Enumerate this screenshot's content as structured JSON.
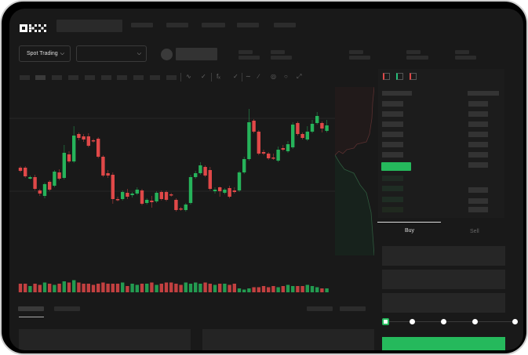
{
  "header": {
    "logo": "OKX"
  },
  "toolbar": {
    "market_select": "Spot Trading",
    "pair_select": ""
  },
  "trade_panel": {
    "tabs": [
      "Buy",
      "Sell"
    ],
    "active_tab": "Buy",
    "slider_percent": 0
  },
  "colors": {
    "up": "#26b35a",
    "down": "#e04848",
    "accent": "#25b95c",
    "background": "#191919"
  },
  "icons": [
    "chevron-down-icon",
    "line-tool-icon",
    "indicator-icon",
    "draw-icon",
    "ruler-icon",
    "camera-icon",
    "target-icon",
    "fullscreen-icon",
    "orderbook-both-icon",
    "orderbook-buy-icon",
    "orderbook-sell-icon"
  ],
  "chart_data": {
    "type": "candlestick",
    "candles": [
      [
        97,
        93,
        99,
        91
      ],
      [
        97,
        86,
        99,
        84
      ],
      [
        83,
        85,
        87,
        82
      ],
      [
        85,
        70,
        88,
        68
      ],
      [
        68,
        64,
        70,
        61
      ],
      [
        61,
        76,
        78,
        58
      ],
      [
        79,
        69,
        81,
        67
      ],
      [
        74,
        92,
        94,
        72
      ],
      [
        91,
        83,
        95,
        81
      ],
      [
        84,
        116,
        126,
        82
      ],
      [
        114,
        105,
        118,
        103
      ],
      [
        105,
        138,
        150,
        103
      ],
      [
        140,
        135,
        142,
        132
      ],
      [
        137,
        133,
        140,
        130
      ],
      [
        137,
        125,
        141,
        123
      ],
      [
        132,
        131,
        134,
        129
      ],
      [
        134,
        111,
        136,
        109
      ],
      [
        111,
        87,
        113,
        85
      ],
      [
        90,
        87,
        94,
        84
      ],
      [
        88,
        57,
        91,
        51
      ],
      [
        57,
        56,
        60,
        54
      ],
      [
        57,
        66,
        68,
        55
      ],
      [
        65,
        60,
        70,
        57
      ],
      [
        62,
        64,
        66,
        59
      ],
      [
        64,
        69,
        72,
        62
      ],
      [
        68,
        51,
        70,
        49
      ],
      [
        52,
        56,
        58,
        50
      ],
      [
        55,
        53,
        61,
        46
      ],
      [
        54,
        65,
        67,
        52
      ],
      [
        66,
        57,
        68,
        55
      ],
      [
        66,
        56,
        68,
        54
      ],
      [
        63,
        62,
        65,
        60
      ],
      [
        56,
        43,
        58,
        41
      ],
      [
        45,
        44,
        47,
        42
      ],
      [
        43,
        50,
        52,
        41
      ],
      [
        52,
        85,
        88,
        50
      ],
      [
        85,
        90,
        93,
        83
      ],
      [
        90,
        100,
        104,
        88
      ],
      [
        98,
        87,
        100,
        85
      ],
      [
        94,
        70,
        98,
        68
      ],
      [
        67,
        69,
        72,
        64
      ],
      [
        72,
        67,
        73,
        60
      ],
      [
        65,
        69,
        71,
        63
      ],
      [
        71,
        60,
        74,
        58
      ],
      [
        68,
        66,
        72,
        64
      ],
      [
        68,
        91,
        93,
        66
      ],
      [
        91,
        108,
        111,
        89
      ],
      [
        108,
        155,
        172,
        106
      ],
      [
        157,
        143,
        159,
        141
      ],
      [
        143,
        115,
        145,
        113
      ],
      [
        117,
        115,
        120,
        113
      ],
      [
        115,
        109,
        117,
        107
      ],
      [
        110,
        109,
        115,
        107
      ],
      [
        106,
        120,
        124,
        104
      ],
      [
        122,
        120,
        126,
        118
      ],
      [
        118,
        127,
        131,
        116
      ],
      [
        123,
        152,
        155,
        121
      ],
      [
        154,
        140,
        156,
        138
      ],
      [
        140,
        135,
        142,
        133
      ],
      [
        133,
        143,
        150,
        131
      ],
      [
        143,
        153,
        158,
        141
      ],
      [
        154,
        163,
        168,
        152
      ],
      [
        154,
        147,
        156,
        142
      ],
      [
        144,
        151,
        158,
        142
      ]
    ],
    "volume": [
      6,
      6,
      4,
      6,
      5,
      7,
      6,
      5,
      6,
      8,
      7,
      9,
      7,
      6,
      6,
      5,
      6,
      7,
      6,
      6,
      6,
      7,
      4,
      6,
      5,
      6,
      6,
      7,
      5,
      6,
      7,
      7,
      6,
      5,
      7,
      6,
      7,
      6,
      7,
      6,
      5,
      6,
      6,
      5,
      6,
      2,
      1,
      2,
      3,
      3,
      4,
      3,
      4,
      3,
      4,
      5,
      4,
      4,
      4,
      5,
      4,
      3,
      2,
      2
    ]
  }
}
